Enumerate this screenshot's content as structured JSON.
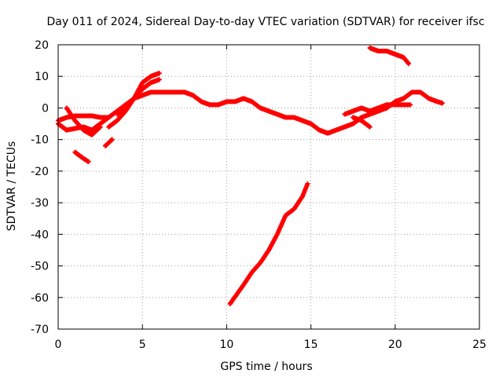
{
  "chart_data": {
    "type": "scatter",
    "title": "Day 011 of 2024, Sidereal Day-to-day VTEC variation (SDTVAR) for receiver ifsc",
    "xlabel": "GPS time / hours",
    "ylabel": "SDTVAR / TECUs",
    "xlim": [
      0,
      25
    ],
    "ylim": [
      -70,
      20
    ],
    "xticks": [
      0,
      5,
      10,
      15,
      20,
      25
    ],
    "yticks": [
      -70,
      -60,
      -50,
      -40,
      -30,
      -20,
      -10,
      0,
      10,
      20
    ],
    "grid": true,
    "marker_color": "#ff0000",
    "series": [
      {
        "name": "main-band",
        "x": [
          0.0,
          0.5,
          1.0,
          1.5,
          2.0,
          2.5,
          3.0,
          3.5,
          4.0,
          4.5,
          5.0,
          5.5,
          6.0,
          6.5,
          7.0,
          7.5,
          8.0,
          8.5,
          9.0,
          9.5,
          10.0,
          10.5,
          11.0,
          11.5,
          12.0,
          12.5,
          13.0,
          13.5,
          14.0,
          14.5,
          15.0,
          15.5,
          16.0,
          16.5,
          17.0,
          17.5,
          18.0,
          18.5,
          19.0,
          19.5,
          20.0,
          20.5,
          21.0,
          21.5,
          22.0,
          22.5,
          22.8
        ],
        "y": [
          -4,
          -3,
          -2.5,
          -2.5,
          -2.5,
          -3,
          -3,
          -1,
          1,
          3,
          4,
          5,
          5,
          5,
          5,
          5,
          4,
          2,
          1,
          1,
          2,
          2,
          3,
          2,
          0,
          -1,
          -2,
          -3,
          -3,
          -4,
          -5,
          -7,
          -8,
          -7,
          -6,
          -5,
          -3,
          -2,
          -1,
          0,
          2,
          3,
          5,
          5,
          3,
          2,
          1.5
        ]
      },
      {
        "name": "lower-branch",
        "x": [
          0.0,
          0.5,
          1.0,
          1.5,
          2.0,
          2.5,
          3.0
        ],
        "y": [
          -5,
          -7,
          -6.5,
          -6,
          -7,
          -5,
          -3
        ]
      },
      {
        "name": "loop-branch",
        "x": [
          0.5,
          1.0,
          1.5,
          2.0,
          2.5
        ],
        "y": [
          0,
          -4,
          -7,
          -8.5,
          -6
        ]
      },
      {
        "name": "rise-branch",
        "x": [
          3.0,
          3.5,
          4.0,
          4.5,
          5.0,
          5.5,
          6.0
        ],
        "y": [
          -6,
          -4,
          -1,
          3,
          8,
          10,
          11
        ]
      },
      {
        "name": "mid-branch",
        "x": [
          3.5,
          4.0,
          4.5,
          5.0,
          5.5,
          6.0
        ],
        "y": [
          -2,
          0,
          3,
          6,
          8,
          9
        ]
      },
      {
        "name": "upper-late",
        "x": [
          18.5,
          19.0,
          19.5,
          20.0,
          20.5,
          20.8
        ],
        "y": [
          19,
          18,
          18,
          17,
          16,
          14
        ]
      },
      {
        "name": "late-lower",
        "x": [
          17.0,
          17.5,
          18.0,
          18.5,
          19.0,
          19.5,
          20.0,
          20.5,
          20.9
        ],
        "y": [
          -2,
          -1,
          0,
          -1,
          0,
          1,
          1,
          1,
          1
        ]
      },
      {
        "name": "late-dip",
        "x": [
          17.5,
          18.0,
          18.5
        ],
        "y": [
          -3,
          -4,
          -6
        ]
      },
      {
        "name": "early-low",
        "x": [
          1.0,
          1.5,
          1.8
        ],
        "y": [
          -14,
          -16,
          -17
        ]
      },
      {
        "name": "early-mid",
        "x": [
          2.8,
          3.0,
          3.2
        ],
        "y": [
          -12,
          -11,
          -10
        ]
      },
      {
        "name": "deep-arc",
        "x": [
          10.2,
          10.6,
          11.0,
          11.5,
          12.0,
          12.5,
          13.0,
          13.5,
          14.0,
          14.5,
          14.8
        ],
        "y": [
          -62,
          -59,
          -56,
          -52,
          -49,
          -45,
          -40,
          -34,
          -32,
          -28,
          -24
        ]
      }
    ]
  }
}
